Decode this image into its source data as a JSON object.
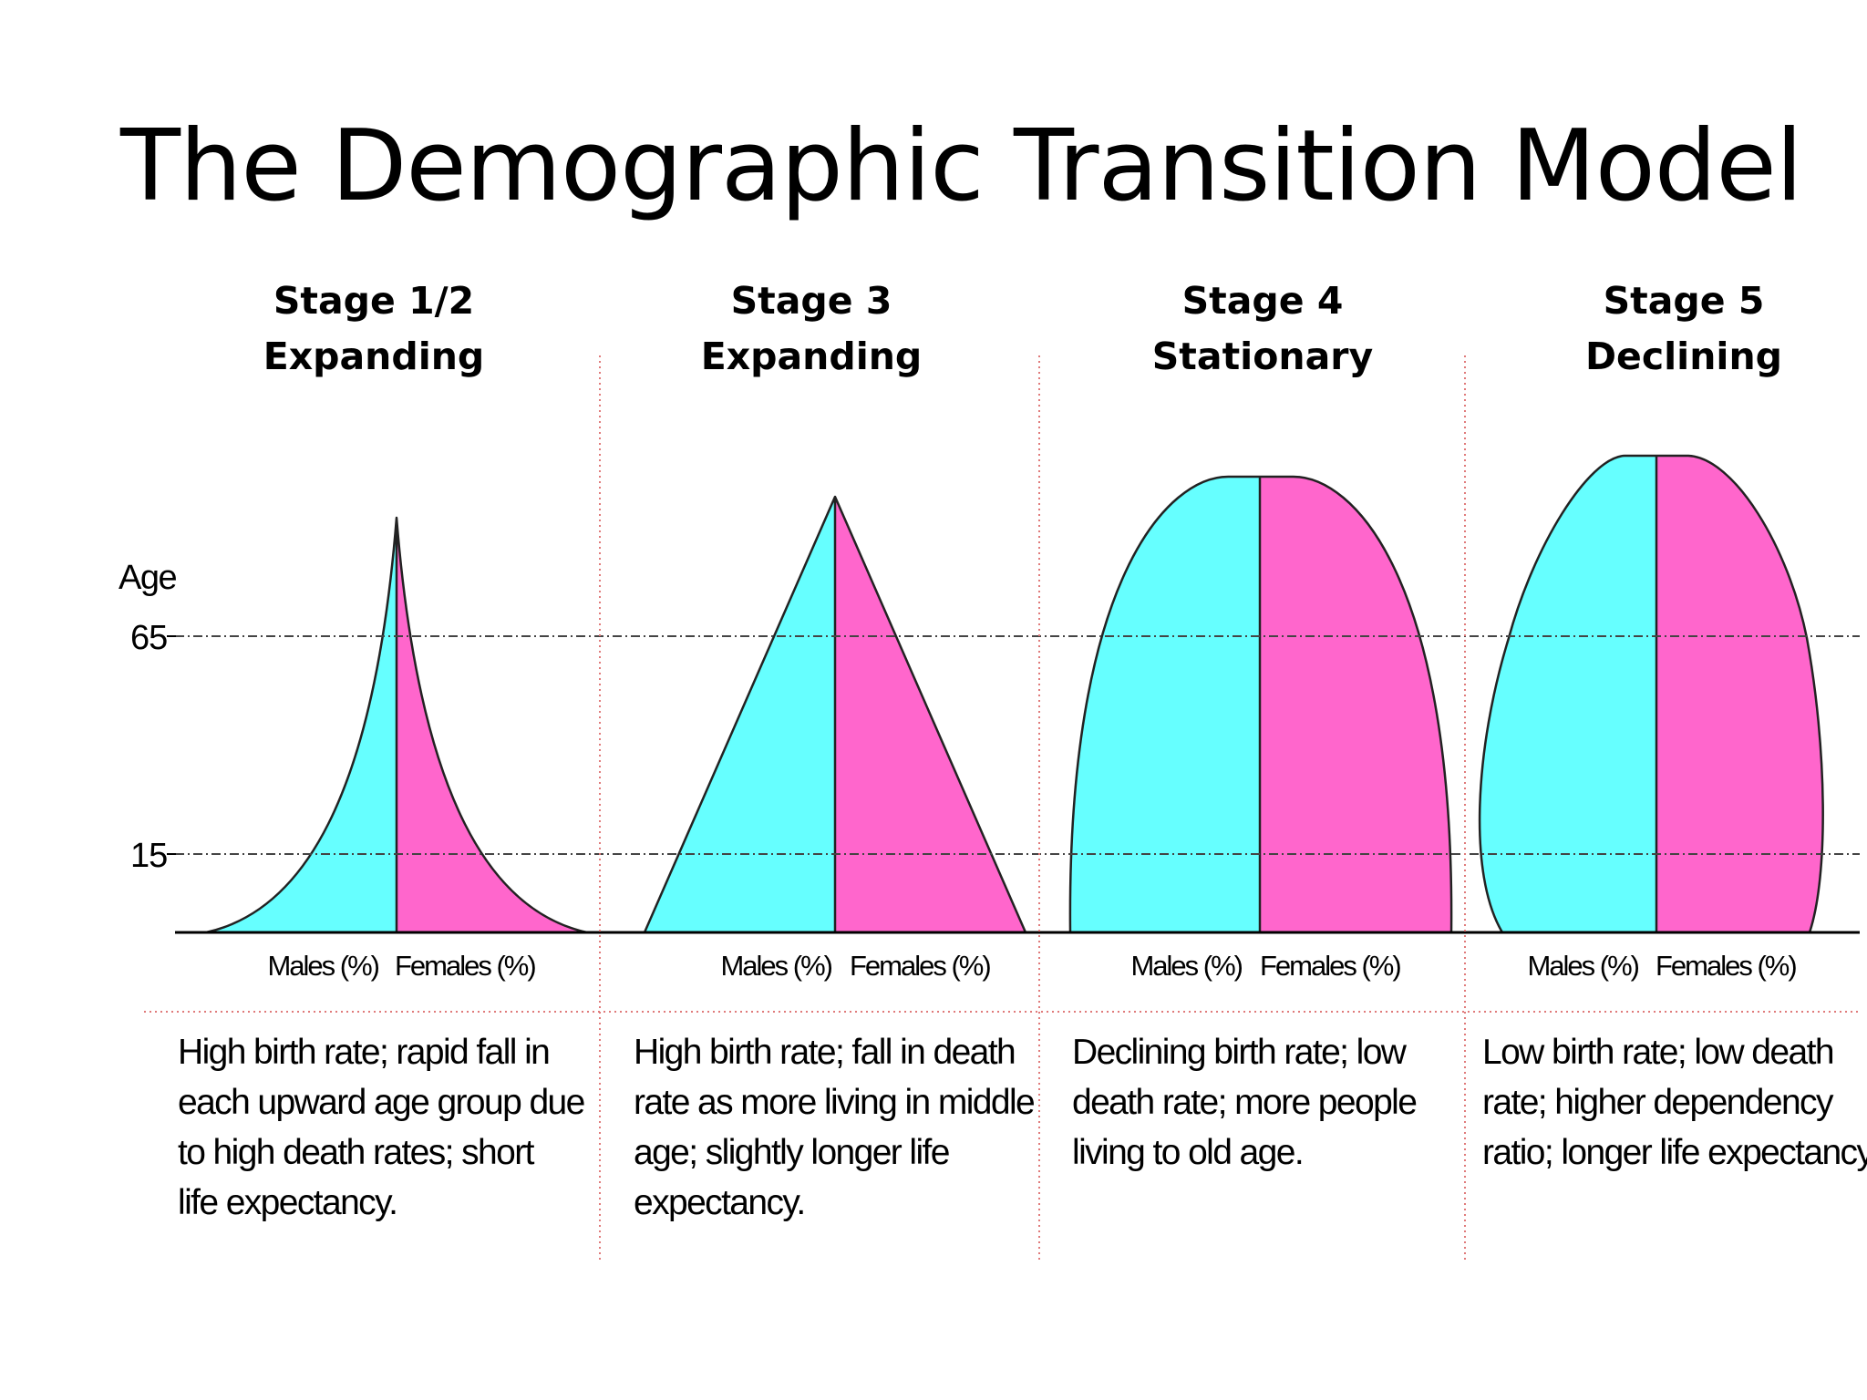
{
  "title": "The Demographic Transition Model",
  "axis": {
    "y_label": "Age",
    "ticks": [
      "65",
      "15"
    ],
    "x_label_males": "Males (%)",
    "x_label_females": "Females (%)"
  },
  "stages": [
    {
      "stage": "Stage 1/2",
      "type": "Expanding",
      "shape": "concave pyramid",
      "description_lines": [
        "High birth rate; rapid fall in",
        "each upward age group due",
        "to high death rates; short",
        "life expectancy."
      ]
    },
    {
      "stage": "Stage 3",
      "type": "Expanding",
      "shape": "straight-sided pyramid",
      "description_lines": [
        "High birth rate; fall in death",
        "rate as more living in middle",
        "age; slightly longer life",
        "expectancy."
      ]
    },
    {
      "stage": "Stage 4",
      "type": "Stationary",
      "shape": "rounded dome",
      "description_lines": [
        "Declining birth rate; low",
        "death rate; more people",
        "living to old age."
      ]
    },
    {
      "stage": "Stage 5",
      "type": "Declining",
      "shape": "narrow-base dome",
      "description_lines": [
        "Low birth rate; low death",
        "rate; higher dependency",
        "ratio; longer life expectancy"
      ]
    }
  ],
  "colors": {
    "males": "#66ffff",
    "females": "#ff66cc",
    "outline": "#222222",
    "divider": "#e07a7a",
    "reference_line": "#444444"
  }
}
